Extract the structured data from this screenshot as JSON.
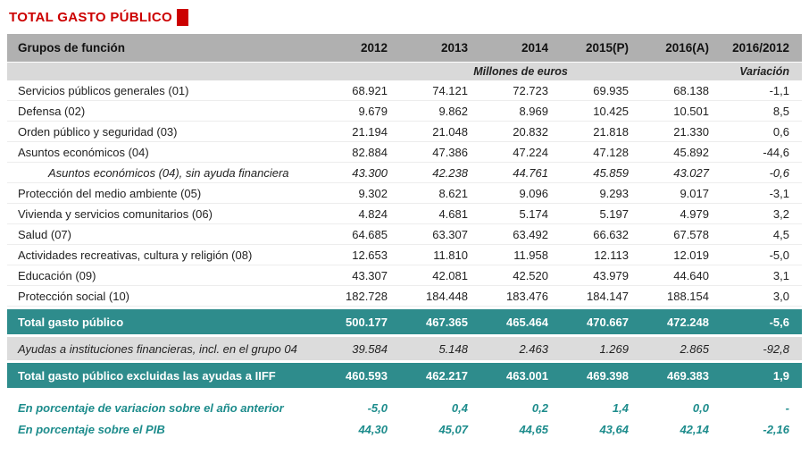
{
  "page": {
    "title": "TOTAL GASTO PÚBLICO"
  },
  "colors": {
    "title_red": "#cc0000",
    "header_gray": "#b0b0b0",
    "subheader_gray": "#d9d9d9",
    "total_row_teal": "#2e8c8c",
    "gray_row": "#dcdcdc",
    "footer_text_teal": "#1d8c8c"
  },
  "table": {
    "header": {
      "label": "Grupos de función",
      "years": [
        "2012",
        "2013",
        "2014",
        "2015(P)",
        "2016(A)",
        "2016/2012"
      ]
    },
    "subheader": {
      "units_label": "Millones de euros",
      "variation_label": "Variación"
    },
    "rows": [
      {
        "type": "data",
        "label": "Servicios públicos generales (01)",
        "values": [
          "68.921",
          "74.121",
          "72.723",
          "69.935",
          "68.138",
          "-1,1"
        ]
      },
      {
        "type": "data",
        "label": "Defensa (02)",
        "values": [
          "9.679",
          "9.862",
          "8.969",
          "10.425",
          "10.501",
          "8,5"
        ]
      },
      {
        "type": "data",
        "label": "Orden público y seguridad (03)",
        "values": [
          "21.194",
          "21.048",
          "20.832",
          "21.818",
          "21.330",
          "0,6"
        ]
      },
      {
        "type": "data",
        "label": "Asuntos económicos (04)",
        "values": [
          "82.884",
          "47.386",
          "47.224",
          "47.128",
          "45.892",
          "-44,6"
        ]
      },
      {
        "type": "sub-italic",
        "label": "Asuntos económicos (04), sin ayuda financiera",
        "values": [
          "43.300",
          "42.238",
          "44.761",
          "45.859",
          "43.027",
          "-0,6"
        ]
      },
      {
        "type": "data",
        "label": "Protección del medio ambiente (05)",
        "values": [
          "9.302",
          "8.621",
          "9.096",
          "9.293",
          "9.017",
          "-3,1"
        ]
      },
      {
        "type": "data",
        "label": "Vivienda y servicios comunitarios (06)",
        "values": [
          "4.824",
          "4.681",
          "5.174",
          "5.197",
          "4.979",
          "3,2"
        ]
      },
      {
        "type": "data",
        "label": "Salud (07)",
        "values": [
          "64.685",
          "63.307",
          "63.492",
          "66.632",
          "67.578",
          "4,5"
        ]
      },
      {
        "type": "data",
        "label": "Actividades recreativas, cultura y religión (08)",
        "values": [
          "12.653",
          "11.810",
          "11.958",
          "12.113",
          "12.019",
          "-5,0"
        ]
      },
      {
        "type": "data",
        "label": "Educación (09)",
        "values": [
          "43.307",
          "42.081",
          "42.520",
          "43.979",
          "44.640",
          "3,1"
        ]
      },
      {
        "type": "data",
        "label": "Protección social (10)",
        "values": [
          "182.728",
          "184.448",
          "183.476",
          "184.147",
          "188.154",
          "3,0"
        ]
      },
      {
        "type": "total",
        "label": "Total gasto público",
        "values": [
          "500.177",
          "467.365",
          "465.464",
          "470.667",
          "472.248",
          "-5,6"
        ]
      },
      {
        "type": "gray-italic",
        "label": "Ayudas a instituciones financieras, incl. en el grupo 04",
        "values": [
          "39.584",
          "5.148",
          "2.463",
          "1.269",
          "2.865",
          "-92,8"
        ]
      },
      {
        "type": "total",
        "label": "Total gasto público excluidas las ayudas a IIFF",
        "values": [
          "460.593",
          "462.217",
          "463.001",
          "469.398",
          "469.383",
          "1,9"
        ]
      },
      {
        "type": "footer",
        "label": "En porcentaje de variacion sobre el año anterior",
        "values": [
          "-5,0",
          "0,4",
          "0,2",
          "1,4",
          "0,0",
          "-"
        ]
      },
      {
        "type": "footer",
        "label": "En porcentaje sobre el PIB",
        "values": [
          "44,30",
          "45,07",
          "44,65",
          "43,64",
          "42,14",
          "-2,16"
        ]
      }
    ]
  }
}
